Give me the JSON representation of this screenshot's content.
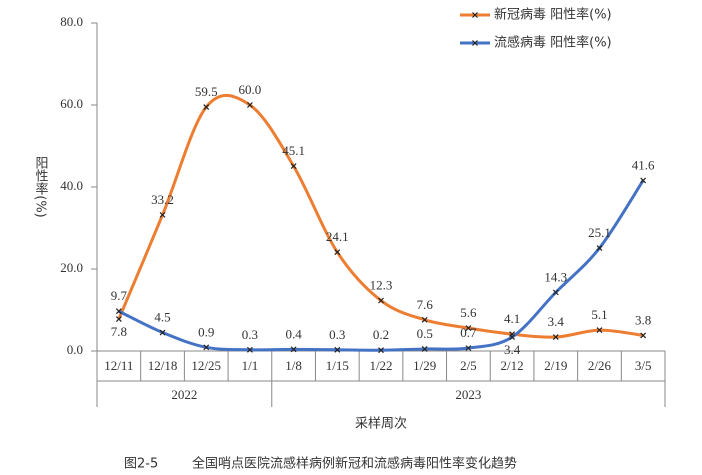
{
  "chart_data": {
    "type": "line",
    "categories": [
      "12/11",
      "12/18",
      "12/25",
      "1/1",
      "1/8",
      "1/15",
      "1/22",
      "1/29",
      "2/5",
      "2/12",
      "2/19",
      "2/26",
      "3/5"
    ],
    "x_group_labels": [
      "2022",
      "2022",
      "2022",
      "2022",
      "2023",
      "2023",
      "2023",
      "2023",
      "2023",
      "2023",
      "2023",
      "2023",
      "2023"
    ],
    "series": [
      {
        "name": "新冠病毒 阳性率(%)",
        "color": "#ed7d31",
        "values": [
          7.8,
          33.2,
          59.5,
          60,
          45.1,
          24.1,
          12.3,
          7.6,
          5.6,
          4.1,
          3.4,
          5.1,
          3.8
        ],
        "value_labels": [
          "7.8",
          "33.2",
          "59.5",
          "60.0",
          "45.1",
          "24.1",
          "12.3",
          "7.6",
          "5.6",
          "4.1",
          "3.4",
          "5.1",
          "3.8"
        ]
      },
      {
        "name": "流感病毒 阳性率(%)",
        "color": "#4472c4",
        "values": [
          9.7,
          4.5,
          0.9,
          0.3,
          0.4,
          0.3,
          0.2,
          0.5,
          0.7,
          3.4,
          14.3,
          25.1,
          41.6
        ],
        "value_labels": [
          "9.7",
          "4.5",
          "0.9",
          "0.3",
          "0.4",
          "0.3",
          "0.2",
          "0.5",
          "0.7",
          "3.4",
          "14.3",
          "25.1",
          "41.6"
        ]
      }
    ],
    "ylim": [
      0,
      80
    ],
    "yticks": [
      {
        "value": 0,
        "label": "0.0"
      },
      {
        "value": 20,
        "label": "20.0"
      },
      {
        "value": 40,
        "label": "40.0"
      },
      {
        "value": 60,
        "label": "60.0"
      },
      {
        "value": 80,
        "label": "80.0"
      }
    ],
    "y_label": "阳性率(%)",
    "x_label": "采样周次",
    "figure_number": "图2-5",
    "caption": "全国哨点医院流感样病例新冠和流感病毒阳性率变化趋势",
    "legend": "top-right"
  }
}
